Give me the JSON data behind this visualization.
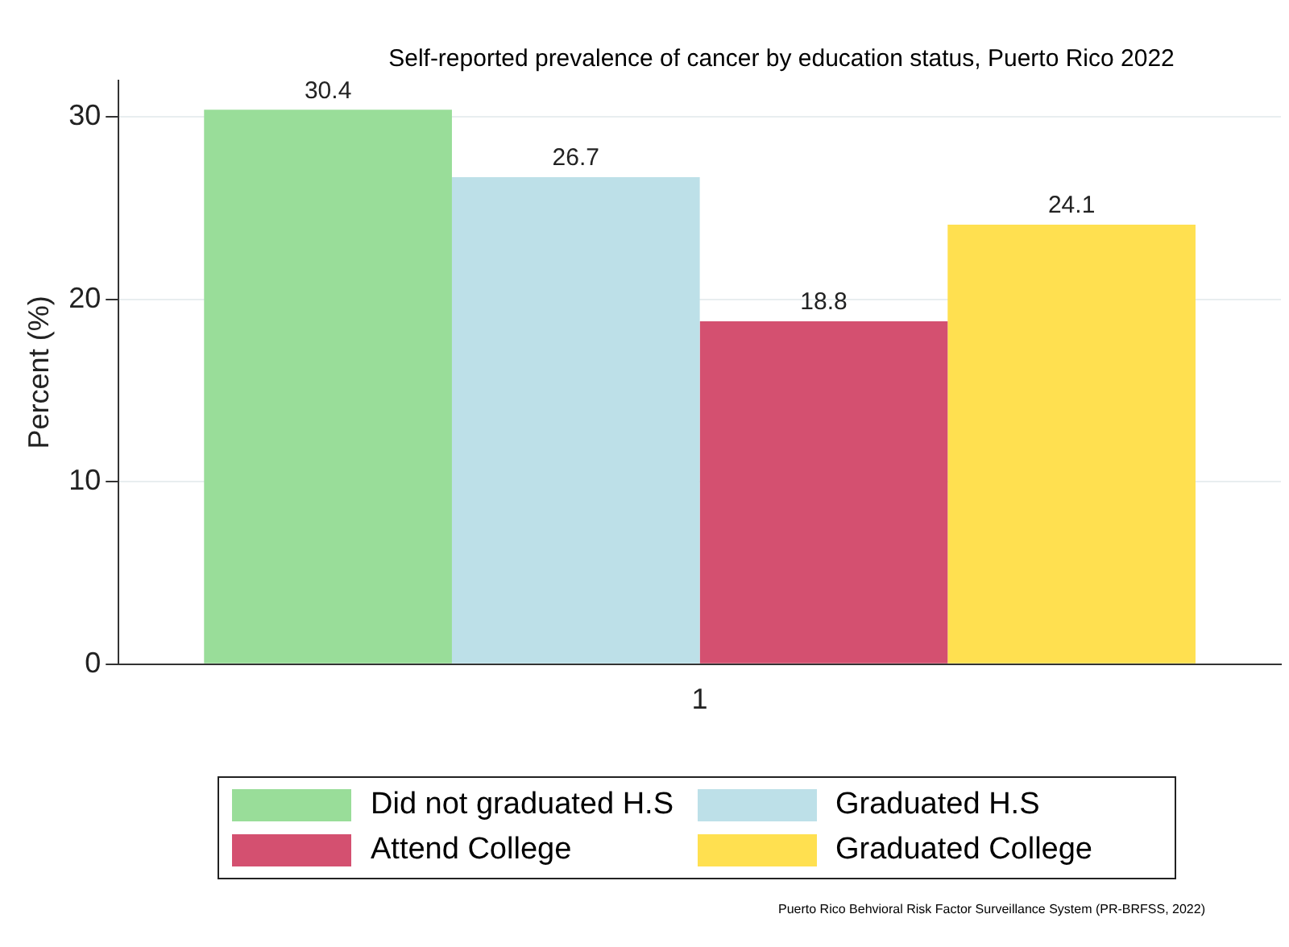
{
  "chart_data": {
    "type": "bar",
    "title": "Self-reported prevalence of cancer by education status, Puerto Rico 2022",
    "ylabel": "Percent (%)",
    "categories": [
      "1"
    ],
    "series": [
      {
        "name": "Did not graduated H.S",
        "color": "#99dd99",
        "values": [
          30.4
        ]
      },
      {
        "name": "Graduated H.S",
        "color": "#bde0e8",
        "values": [
          26.7
        ]
      },
      {
        "name": "Attend College",
        "color": "#d45070",
        "values": [
          18.8
        ]
      },
      {
        "name": "Graduated College",
        "color": "#ffe050",
        "values": [
          24.1
        ]
      }
    ],
    "ylim": [
      0,
      32
    ],
    "yticks": [
      0,
      10,
      20,
      30
    ],
    "grid": "y",
    "legend": "bottom",
    "data_labels": true,
    "annotations": [
      "Puerto Rico Behvioral Risk Factor Surveillance System (PR-BRFSS, 2022)"
    ]
  }
}
